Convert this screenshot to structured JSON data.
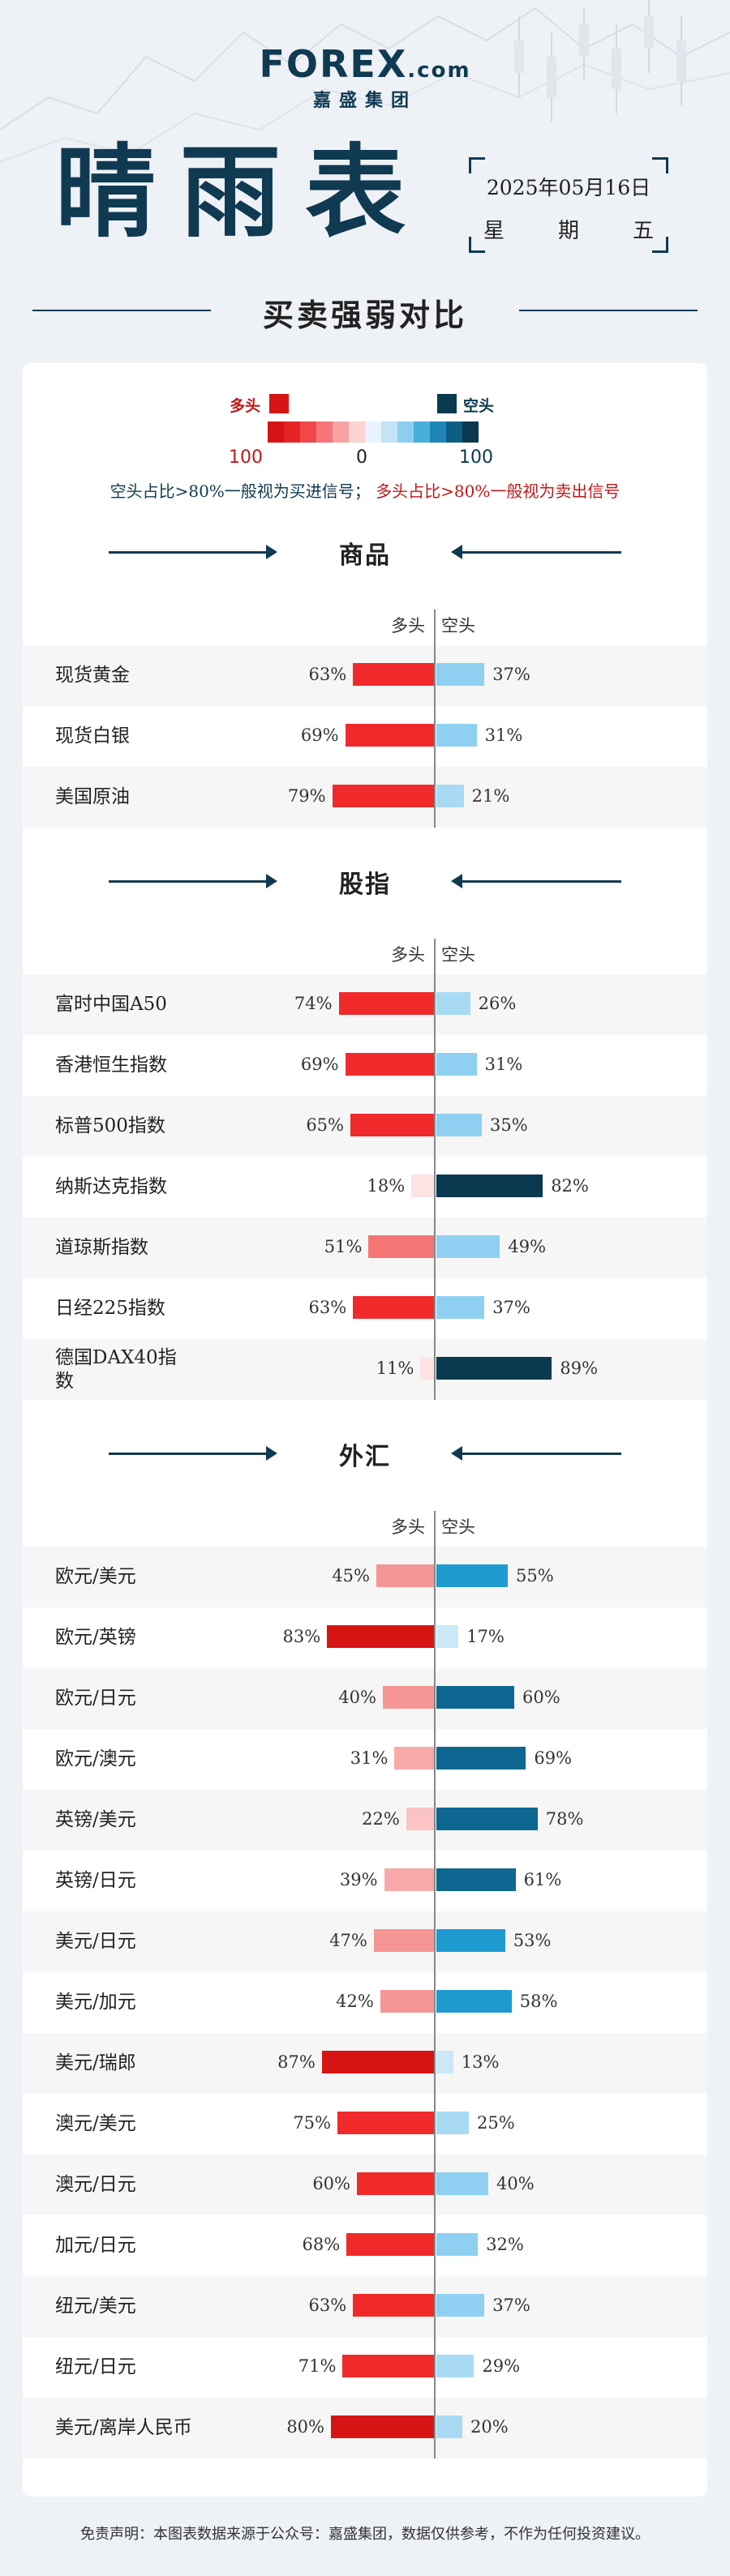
{
  "header": {
    "brand": "FOREX",
    "brand_suffix": ".com",
    "brand_sub": "嘉盛集团",
    "title": "晴雨表",
    "date": "2025年05月16日",
    "weekday": [
      "星",
      "期",
      "五"
    ],
    "subtitle": "买卖强弱对比"
  },
  "legend": {
    "long_label": "多头",
    "short_label": "空头",
    "left_num": "100",
    "mid_num": "0",
    "right_num": "100",
    "scale_colors": [
      "#d61414",
      "#e52525",
      "#f0484a",
      "#f57578",
      "#f9a3a5",
      "#fcd2d3",
      "#e9f3fb",
      "#c5e3f6",
      "#8fcdf0",
      "#4aaedc",
      "#1f86b7",
      "#0d5e85",
      "#0a3950"
    ],
    "signal_buy": "空头占比>80%一般视为买进信号；",
    "signal_sell": "多头占比>80%一般视为卖出信号"
  },
  "col_labels": {
    "long": "多头",
    "short": "空头"
  },
  "sections": [
    {
      "title": "商品",
      "rows": [
        {
          "name": "现货黄金",
          "long": 63,
          "short": 37,
          "long_text": "63%",
          "short_text": "37%"
        },
        {
          "name": "现货白银",
          "long": 69,
          "short": 31,
          "long_text": "69%",
          "short_text": "31%"
        },
        {
          "name": "美国原油",
          "long": 79,
          "short": 21,
          "long_text": "79%",
          "short_text": "21%"
        }
      ]
    },
    {
      "title": "股指",
      "rows": [
        {
          "name": "富时中国A50",
          "long": 74,
          "short": 26,
          "long_text": "74%",
          "short_text": "26%"
        },
        {
          "name": "香港恒生指数",
          "long": 69,
          "short": 31,
          "long_text": "69%",
          "short_text": "31%"
        },
        {
          "name": "标普500指数",
          "long": 65,
          "short": 35,
          "long_text": "65%",
          "short_text": "35%"
        },
        {
          "name": "纳斯达克指数",
          "long": 18,
          "short": 82,
          "long_text": "18%",
          "short_text": "82%"
        },
        {
          "name": "道琼斯指数",
          "long": 51,
          "short": 49,
          "long_text": "51%",
          "short_text": "49%"
        },
        {
          "name": "日经225指数",
          "long": 63,
          "short": 37,
          "long_text": "63%",
          "short_text": "37%"
        },
        {
          "name": "德国DAX40指数",
          "long": 11,
          "short": 89,
          "long_text": "11%",
          "short_text": "89%"
        }
      ]
    },
    {
      "title": "外汇",
      "rows": [
        {
          "name": "欧元/美元",
          "long": 45,
          "short": 55,
          "long_text": "45%",
          "short_text": "55%"
        },
        {
          "name": "欧元/英镑",
          "long": 83,
          "short": 17,
          "long_text": "83%",
          "short_text": "17%"
        },
        {
          "name": "欧元/日元",
          "long": 40,
          "short": 60,
          "long_text": "40%",
          "short_text": "60%"
        },
        {
          "name": "欧元/澳元",
          "long": 31,
          "short": 69,
          "long_text": "31%",
          "short_text": "69%"
        },
        {
          "name": "英镑/美元",
          "long": 22,
          "short": 78,
          "long_text": "22%",
          "short_text": "78%"
        },
        {
          "name": "英镑/日元",
          "long": 39,
          "short": 61,
          "long_text": "39%",
          "short_text": "61%"
        },
        {
          "name": "美元/日元",
          "long": 47,
          "short": 53,
          "long_text": "47%",
          "short_text": "53%"
        },
        {
          "name": "美元/加元",
          "long": 42,
          "short": 58,
          "long_text": "42%",
          "short_text": "58%"
        },
        {
          "name": "美元/瑞郎",
          "long": 87,
          "short": 13,
          "long_text": "87%",
          "short_text": "13%"
        },
        {
          "name": "澳元/美元",
          "long": 75,
          "short": 25,
          "long_text": "75%",
          "short_text": "25%"
        },
        {
          "name": "澳元/日元",
          "long": 60,
          "short": 40,
          "long_text": "60%",
          "short_text": "40%"
        },
        {
          "name": "加元/日元",
          "long": 68,
          "short": 32,
          "long_text": "68%",
          "short_text": "32%"
        },
        {
          "name": "纽元/美元",
          "long": 63,
          "short": 37,
          "long_text": "63%",
          "short_text": "37%"
        },
        {
          "name": "纽元/日元",
          "long": 71,
          "short": 29,
          "long_text": "71%",
          "short_text": "29%"
        },
        {
          "name": "美元/离岸人民币",
          "long": 80,
          "short": 20,
          "long_text": "80%",
          "short_text": "20%"
        }
      ]
    }
  ],
  "footer": "免责声明：本图表数据来源于公众号：嘉盛集团，数据仅供参考，不作为任何投资建议。"
}
